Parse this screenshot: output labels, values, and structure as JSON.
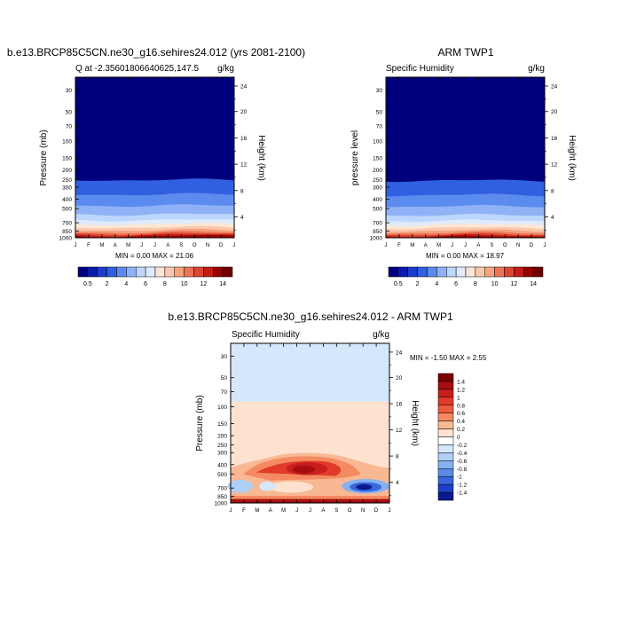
{
  "chart_data": [
    {
      "type": "heatmap",
      "title": "b.e13.BRCP85C5CN.ne30_g16.sehires24.012 (yrs 2081-2100)",
      "subtitle_left": "Q at -2.35601806640625,147.5",
      "subtitle_right": "g/kg",
      "ylabel": "Pressure (mb)",
      "y2label": "Height (km)",
      "minmax": "MIN =    0.00 MAX =  21.06",
      "x_ticks": [
        "J",
        "F",
        "M",
        "A",
        "M",
        "J",
        "J",
        "A",
        "S",
        "O",
        "N",
        "D",
        "J"
      ],
      "y_ticks": [
        "30",
        "50",
        "70",
        "100",
        "150",
        "200",
        "250",
        "300",
        "400",
        "500",
        "700",
        "850",
        "1000"
      ],
      "y2_ticks": [
        "24",
        "20",
        "16",
        "12",
        "8",
        "4"
      ],
      "colorbar_labels": [
        "0.5",
        "2",
        "4",
        "6",
        "8",
        "10",
        "12",
        "14"
      ],
      "colors": [
        "#00007f",
        "#0a1aaa",
        "#1a3ccc",
        "#3060e0",
        "#5c8bef",
        "#8fb2f6",
        "#bdd6fb",
        "#dfeafc",
        "#fde6d4",
        "#fac8ad",
        "#f5a27f",
        "#ec7556",
        "#dc4530",
        "#c01e16",
        "#990000",
        "#6e0000"
      ]
    },
    {
      "type": "heatmap",
      "title": "ARM TWP1",
      "subtitle_left": "Specific Humidity",
      "subtitle_right": "g/kg",
      "ylabel": "pressure level",
      "y2label": "Height (km)",
      "minmax": "MIN =    0.00 MAX =  18.97",
      "x_ticks": [
        "J",
        "F",
        "M",
        "A",
        "M",
        "J",
        "J",
        "A",
        "S",
        "O",
        "N",
        "D",
        "J"
      ],
      "y_ticks": [
        "30",
        "50",
        "70",
        "100",
        "150",
        "200",
        "250",
        "300",
        "400",
        "500",
        "700",
        "850",
        "1000"
      ],
      "y2_ticks": [
        "24",
        "20",
        "16",
        "12",
        "8",
        "4"
      ],
      "colorbar_labels": [
        "0.5",
        "2",
        "4",
        "6",
        "8",
        "10",
        "12",
        "14"
      ],
      "colors": [
        "#00007f",
        "#0a1aaa",
        "#1a3ccc",
        "#3060e0",
        "#5c8bef",
        "#8fb2f6",
        "#bdd6fb",
        "#dfeafc",
        "#fde6d4",
        "#fac8ad",
        "#f5a27f",
        "#ec7556",
        "#dc4530",
        "#c01e16",
        "#990000",
        "#6e0000"
      ]
    },
    {
      "type": "heatmap",
      "title": "b.e13.BRCP85C5CN.ne30_g16.sehires24.012 - ARM TWP1",
      "subtitle_left": "Specific Humidity",
      "subtitle_right": "g/kg",
      "ylabel": "Pressure (mb)",
      "y2label": "Height (km)",
      "minmax": "MIN =  -1.50 MAX =   2.55",
      "x_ticks": [
        "J",
        "F",
        "M",
        "A",
        "M",
        "J",
        "J",
        "A",
        "S",
        "O",
        "N",
        "D",
        "J"
      ],
      "y_ticks": [
        "30",
        "50",
        "70",
        "100",
        "150",
        "200",
        "250",
        "300",
        "400",
        "500",
        "700",
        "850",
        "1000"
      ],
      "y2_ticks": [
        "24",
        "20",
        "16",
        "12",
        "8",
        "4"
      ],
      "colorbar_labels": [
        "1.4",
        "1.2",
        "1",
        "0.8",
        "0.6",
        "0.4",
        "0.2",
        "0",
        "-0.2",
        "-0.4",
        "-0.6",
        "-0.8",
        "-1",
        "-1.2",
        "-1.4"
      ],
      "colors": [
        "#7a0000",
        "#a50f0f",
        "#c81e1e",
        "#e03a2a",
        "#ee5a3c",
        "#f58a62",
        "#f9b894",
        "#fde2cf",
        "#ffffff",
        "#d5e7fb",
        "#b0cff6",
        "#86b1ef",
        "#5a8ce6",
        "#3a66dc",
        "#1e3fc8",
        "#0a1a90"
      ]
    }
  ]
}
